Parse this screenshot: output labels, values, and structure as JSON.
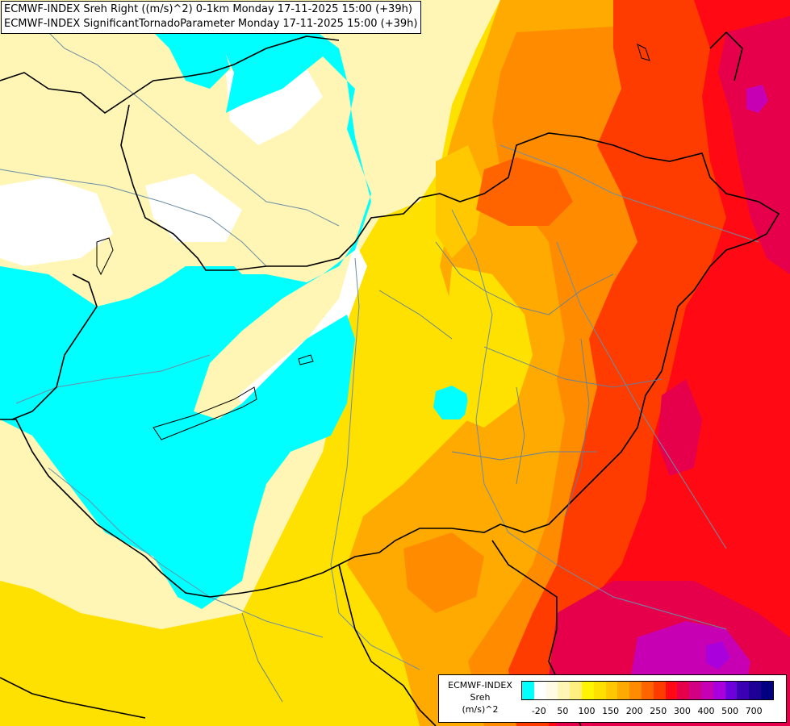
{
  "title": {
    "line1": "ECMWF-INDEX Sreh Right ((m/s)^2) 0-1km Monday 17-11-2025 15:00 (+39h)",
    "line2": "ECMWF-INDEX SignificantTornadoParameter Monday 17-11-2025 15:00 (+39h)"
  },
  "legend": {
    "line1": "ECMWF-INDEX",
    "line2": "Sreh",
    "line3": "(m/s)^2",
    "colors": [
      "#00ffff",
      "#ffffff",
      "#fffbe4",
      "#fff5b4",
      "#ffef80",
      "#fff500",
      "#ffe100",
      "#ffc800",
      "#ffaa00",
      "#ff8c00",
      "#ff6400",
      "#ff3c00",
      "#ff0a14",
      "#e6004b",
      "#d20082",
      "#c800b4",
      "#aa00dc",
      "#6e00dc",
      "#3c00b4",
      "#1e0096",
      "#000080"
    ],
    "ticks": [
      "-20",
      "50",
      "100",
      "150",
      "200",
      "250",
      "300",
      "400",
      "500",
      "700"
    ]
  },
  "map": {
    "regions": [
      {
        "name": "cyan-west",
        "color": "#00ffff"
      },
      {
        "name": "cyan-pocket",
        "color": "#00ffff"
      },
      {
        "name": "pale-north",
        "color": "#fff5b4"
      },
      {
        "name": "white-north",
        "color": "#ffffff"
      },
      {
        "name": "yellow-central",
        "color": "#fff500"
      },
      {
        "name": "orange-east",
        "color": "#ffaa00"
      },
      {
        "name": "red-east",
        "color": "#ff3c00"
      },
      {
        "name": "crimson-east",
        "color": "#e6004b"
      },
      {
        "name": "magenta-southeast",
        "color": "#c800b4"
      }
    ]
  }
}
